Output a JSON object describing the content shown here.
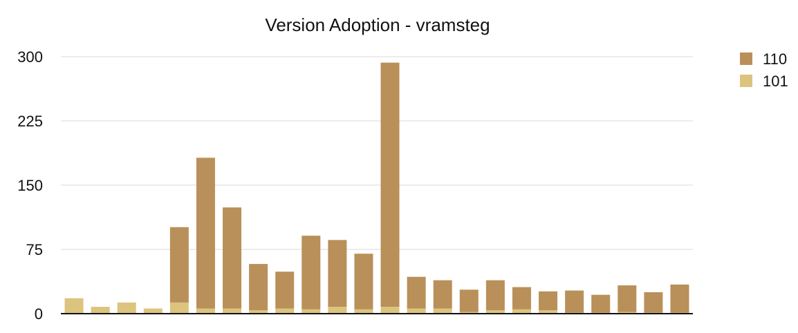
{
  "chart_data": {
    "type": "bar",
    "stacked": true,
    "title": "Version Adoption - vramsteg",
    "xlabel": "",
    "ylabel": "",
    "ylim": [
      0,
      300
    ],
    "yticks": [
      0,
      75,
      150,
      225,
      300
    ],
    "grid": true,
    "legend_position": "top-right",
    "categories": [
      "",
      "",
      "",
      "",
      "",
      "",
      "",
      "",
      "",
      "",
      "",
      "",
      "",
      "",
      "",
      "",
      "",
      "",
      "",
      "",
      "",
      "",
      "",
      ""
    ],
    "series": [
      {
        "name": "101",
        "color": "#dcc47e",
        "values": [
          18,
          8,
          13,
          6,
          13,
          6,
          6,
          4,
          6,
          5,
          8,
          5,
          8,
          6,
          6,
          2,
          4,
          5,
          4,
          1,
          1,
          2,
          1,
          1
        ]
      },
      {
        "name": "110",
        "color": "#b99059",
        "values": [
          0,
          0,
          0,
          0,
          88,
          176,
          118,
          54,
          43,
          86,
          78,
          65,
          285,
          37,
          33,
          26,
          35,
          26,
          22,
          26,
          21,
          31,
          24,
          33
        ]
      }
    ],
    "legend_order": [
      "110",
      "101"
    ]
  }
}
